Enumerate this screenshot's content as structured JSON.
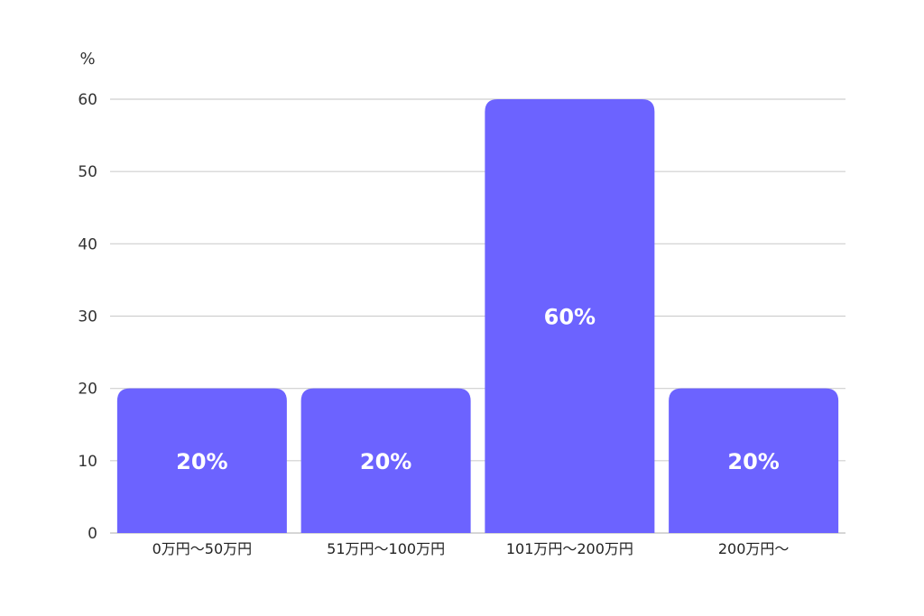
{
  "chart_data": {
    "type": "bar",
    "ylabel": "%",
    "categories": [
      "0万円〜50万円",
      "51万円〜100万円",
      "101万円〜200万円",
      "200万円〜"
    ],
    "values": [
      20,
      20,
      60,
      20
    ],
    "data_labels": [
      "20%",
      "20%",
      "60%",
      "20%"
    ],
    "ylim": [
      0,
      60
    ],
    "yticks": [
      0,
      10,
      20,
      30,
      40,
      50,
      60
    ],
    "grid": true,
    "bar_color": "#6c63ff"
  }
}
